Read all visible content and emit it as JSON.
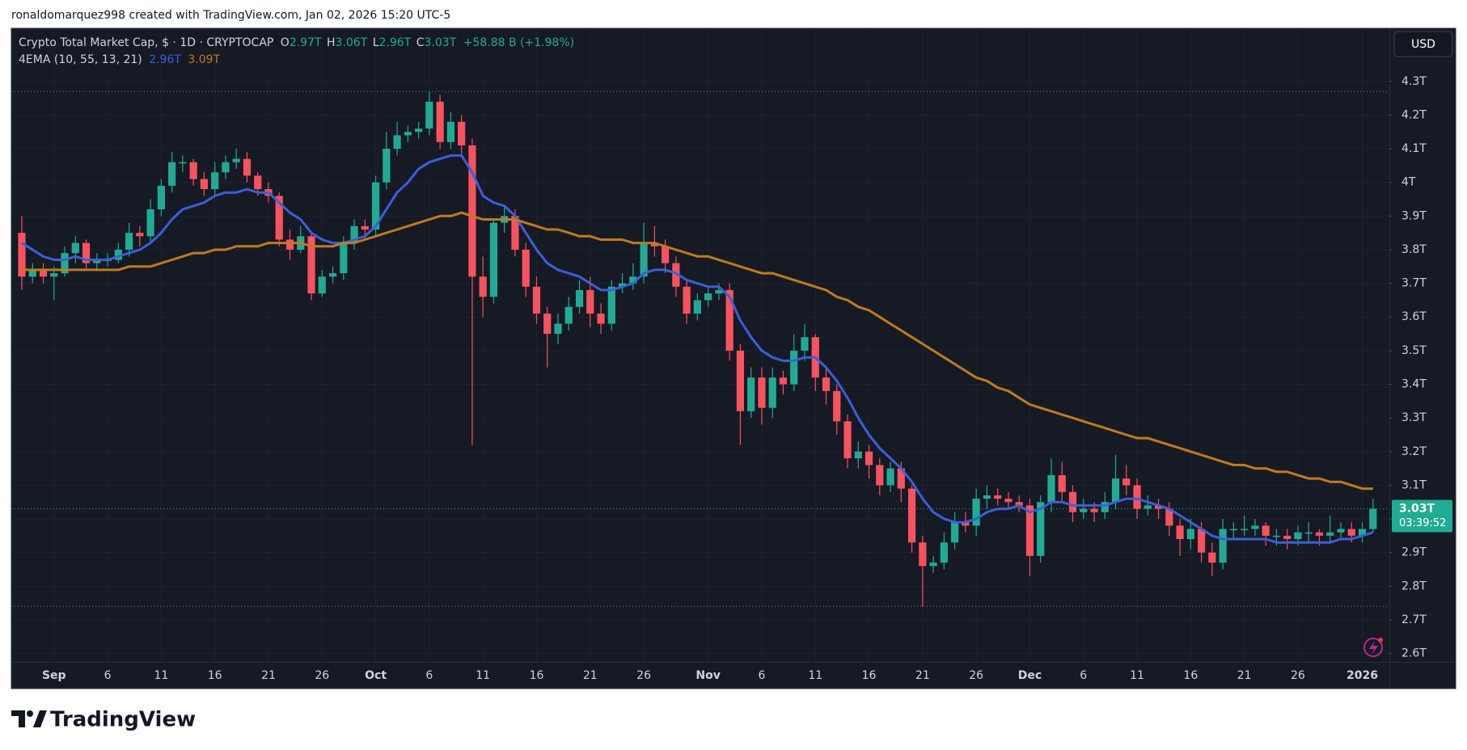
{
  "header": {
    "credit": "ronaldomarquez998 created with TradingView.com, Jan 02, 2026 15:20 UTC-5"
  },
  "footer": {
    "brand": "TradingView"
  },
  "chart_data": {
    "type": "candlestick",
    "symbol": "Crypto Total Market Cap, $ · 1D · CRYPTOCAP",
    "ohlc_legend": {
      "o_key": "O",
      "o": "2.97T",
      "h_key": "H",
      "h": "3.06T",
      "l_key": "L",
      "l": "2.96T",
      "c_key": "C",
      "c": "3.03T",
      "change": "+58.88 B (+1.98%)"
    },
    "indicator": "4EMA (10, 55, 13, 21)",
    "currency": "USD",
    "last_price_label": "3.03T",
    "countdown": "03:39:52",
    "up_color": "#22ab94",
    "down_color": "#f7525f",
    "grid": true,
    "ylim": [
      2.575,
      4.458
    ],
    "yticks": [
      {
        "value": 2.6,
        "label": "2.6T"
      },
      {
        "value": 2.7,
        "label": "2.7T"
      },
      {
        "value": 2.8,
        "label": "2.8T"
      },
      {
        "value": 2.9,
        "label": "2.9T"
      },
      {
        "value": 3.0,
        "label": "3T"
      },
      {
        "value": 3.1,
        "label": "3.1T"
      },
      {
        "value": 3.2,
        "label": "3.2T"
      },
      {
        "value": 3.3,
        "label": "3.3T"
      },
      {
        "value": 3.4,
        "label": "3.4T"
      },
      {
        "value": 3.5,
        "label": "3.5T"
      },
      {
        "value": 3.6,
        "label": "3.6T"
      },
      {
        "value": 3.7,
        "label": "3.7T"
      },
      {
        "value": 3.8,
        "label": "3.8T"
      },
      {
        "value": 3.9,
        "label": "3.9T"
      },
      {
        "value": 4.0,
        "label": "4T"
      },
      {
        "value": 4.1,
        "label": "4.1T"
      },
      {
        "value": 4.2,
        "label": "4.2T"
      },
      {
        "value": 4.3,
        "label": "4.3T"
      }
    ],
    "categories": [
      null,
      null,
      null,
      "Sep",
      null,
      null,
      null,
      null,
      "6",
      null,
      null,
      null,
      null,
      "11",
      null,
      null,
      null,
      null,
      "16",
      null,
      null,
      null,
      null,
      "21",
      null,
      null,
      null,
      null,
      "26",
      null,
      null,
      null,
      null,
      "Oct",
      null,
      null,
      null,
      null,
      "6",
      null,
      null,
      null,
      null,
      "11",
      null,
      null,
      null,
      null,
      "16",
      null,
      null,
      null,
      null,
      "21",
      null,
      null,
      null,
      null,
      "26",
      null,
      null,
      null,
      null,
      null,
      "Nov",
      null,
      null,
      null,
      null,
      "6",
      null,
      null,
      null,
      null,
      "11",
      null,
      null,
      null,
      null,
      "16",
      null,
      null,
      null,
      null,
      "21",
      null,
      null,
      null,
      null,
      "26",
      null,
      null,
      null,
      null,
      "Dec",
      null,
      null,
      null,
      null,
      "6",
      null,
      null,
      null,
      null,
      "11",
      null,
      null,
      null,
      null,
      "16",
      null,
      null,
      null,
      null,
      "21",
      null,
      null,
      null,
      null,
      "26",
      null,
      null,
      null,
      null,
      null,
      "2026",
      null
    ],
    "open": [
      3.85,
      3.72,
      3.74,
      3.72,
      3.73,
      3.79,
      3.82,
      3.76,
      3.77,
      3.77,
      3.8,
      3.85,
      3.84,
      3.92,
      3.99,
      4.06,
      4.06,
      4.01,
      3.98,
      4.03,
      4.06,
      4.07,
      4.02,
      3.98,
      3.96,
      3.83,
      3.8,
      3.84,
      3.67,
      3.72,
      3.73,
      3.82,
      3.87,
      3.86,
      4.0,
      4.1,
      4.14,
      4.15,
      4.16,
      4.24,
      4.12,
      4.18,
      4.11,
      3.72,
      3.66,
      3.88,
      3.9,
      3.8,
      3.69,
      3.61,
      3.55,
      3.58,
      3.63,
      3.68,
      3.61,
      3.58,
      3.69,
      3.7,
      3.72,
      3.82,
      3.81,
      3.76,
      3.69,
      3.61,
      3.65,
      3.67,
      3.68,
      3.5,
      3.32,
      3.42,
      3.33,
      3.42,
      3.4,
      3.5,
      3.54,
      3.42,
      3.38,
      3.29,
      3.18,
      3.2,
      3.16,
      3.1,
      3.15,
      3.09,
      2.93,
      2.86,
      2.87,
      2.93,
      2.99,
      2.98,
      3.06,
      3.07,
      3.06,
      3.05,
      3.04,
      2.89,
      3.05,
      3.13,
      3.08,
      3.02,
      3.03,
      3.02,
      3.05,
      3.12,
      3.1,
      3.03,
      3.04,
      3.03,
      2.98,
      2.94,
      2.97,
      2.9,
      2.87,
      2.97,
      2.97,
      2.97,
      2.98,
      2.95,
      2.95,
      2.94,
      2.96,
      2.96,
      2.95,
      2.96,
      2.97,
      2.95,
      2.97
    ],
    "high": [
      3.9,
      3.76,
      3.76,
      3.75,
      3.81,
      3.84,
      3.83,
      3.79,
      3.79,
      3.82,
      3.88,
      3.87,
      3.95,
      4.01,
      4.09,
      4.08,
      4.07,
      4.03,
      4.06,
      4.08,
      4.1,
      4.09,
      4.03,
      4.0,
      3.97,
      3.86,
      3.87,
      3.85,
      3.74,
      3.75,
      3.84,
      3.89,
      3.89,
      4.02,
      4.15,
      4.18,
      4.17,
      4.18,
      4.27,
      4.26,
      4.21,
      4.2,
      4.13,
      3.78,
      3.89,
      3.93,
      3.92,
      3.82,
      3.72,
      3.63,
      3.61,
      3.66,
      3.71,
      3.72,
      3.64,
      3.71,
      3.73,
      3.76,
      3.88,
      3.87,
      3.83,
      3.78,
      3.71,
      3.67,
      3.69,
      3.7,
      3.7,
      3.52,
      3.45,
      3.45,
      3.45,
      3.44,
      3.55,
      3.58,
      3.55,
      3.45,
      3.4,
      3.31,
      3.23,
      3.22,
      3.18,
      3.17,
      3.17,
      3.1,
      2.95,
      2.89,
      2.96,
      3.02,
      3.02,
      3.09,
      3.1,
      3.09,
      3.08,
      3.07,
      3.06,
      3.07,
      3.18,
      3.17,
      3.1,
      3.06,
      3.05,
      3.08,
      3.19,
      3.16,
      3.12,
      3.07,
      3.06,
      3.05,
      3.0,
      3.0,
      2.99,
      2.93,
      3.0,
      2.99,
      3.01,
      3.0,
      2.99,
      2.97,
      2.97,
      2.98,
      2.99,
      2.97,
      3.01,
      2.99,
      2.99,
      2.99,
      3.06
    ],
    "low": [
      3.68,
      3.7,
      3.7,
      3.65,
      3.72,
      3.76,
      3.74,
      3.74,
      3.75,
      3.76,
      3.78,
      3.81,
      3.82,
      3.9,
      3.97,
      4.03,
      3.99,
      3.96,
      3.96,
      4.01,
      4.04,
      4.0,
      3.96,
      3.94,
      3.81,
      3.77,
      3.79,
      3.65,
      3.66,
      3.7,
      3.71,
      3.8,
      3.83,
      3.84,
      3.98,
      4.08,
      4.12,
      4.13,
      4.14,
      4.1,
      4.1,
      4.08,
      3.22,
      3.6,
      3.64,
      3.85,
      3.78,
      3.66,
      3.58,
      3.45,
      3.52,
      3.56,
      3.61,
      3.57,
      3.55,
      3.56,
      3.67,
      3.68,
      3.7,
      3.78,
      3.73,
      3.66,
      3.58,
      3.59,
      3.63,
      3.65,
      3.47,
      3.22,
      3.3,
      3.28,
      3.3,
      3.37,
      3.38,
      3.47,
      3.38,
      3.34,
      3.25,
      3.15,
      3.15,
      3.12,
      3.07,
      3.08,
      3.05,
      2.9,
      2.74,
      2.84,
      2.85,
      2.91,
      2.96,
      2.95,
      3.03,
      3.04,
      3.03,
      3.02,
      2.83,
      2.87,
      3.02,
      3.05,
      2.99,
      3.0,
      2.99,
      3.0,
      3.03,
      3.07,
      3.0,
      3.01,
      3.0,
      2.95,
      2.89,
      2.91,
      2.87,
      2.83,
      2.85,
      2.94,
      2.95,
      2.95,
      2.92,
      2.92,
      2.91,
      2.92,
      2.93,
      2.92,
      2.93,
      2.94,
      2.93,
      2.93,
      2.96
    ],
    "close": [
      3.72,
      3.74,
      3.72,
      3.73,
      3.79,
      3.82,
      3.76,
      3.77,
      3.77,
      3.8,
      3.85,
      3.84,
      3.92,
      3.99,
      4.06,
      4.06,
      4.01,
      3.98,
      4.03,
      4.06,
      4.07,
      4.02,
      3.98,
      3.96,
      3.83,
      3.8,
      3.84,
      3.67,
      3.72,
      3.73,
      3.82,
      3.87,
      3.86,
      4.0,
      4.1,
      4.14,
      4.15,
      4.16,
      4.24,
      4.12,
      4.18,
      4.11,
      3.72,
      3.66,
      3.88,
      3.9,
      3.8,
      3.69,
      3.61,
      3.55,
      3.58,
      3.63,
      3.68,
      3.61,
      3.58,
      3.69,
      3.7,
      3.72,
      3.82,
      3.81,
      3.76,
      3.69,
      3.61,
      3.65,
      3.67,
      3.68,
      3.5,
      3.32,
      3.42,
      3.33,
      3.42,
      3.4,
      3.5,
      3.54,
      3.42,
      3.38,
      3.29,
      3.18,
      3.2,
      3.16,
      3.1,
      3.15,
      3.09,
      2.93,
      2.86,
      2.87,
      2.93,
      2.99,
      2.98,
      3.06,
      3.07,
      3.06,
      3.05,
      3.04,
      2.89,
      3.05,
      3.13,
      3.08,
      3.02,
      3.03,
      3.02,
      3.05,
      3.12,
      3.1,
      3.03,
      3.04,
      3.03,
      2.98,
      2.94,
      2.97,
      2.9,
      2.87,
      2.97,
      2.97,
      2.97,
      2.98,
      2.95,
      2.95,
      2.94,
      2.96,
      2.96,
      2.95,
      2.96,
      2.97,
      2.95,
      2.97,
      3.03
    ],
    "lines": [
      {
        "color": "#3b5fd9",
        "value_label": "2.96T",
        "values": [
          3.82,
          3.8,
          3.78,
          3.77,
          3.77,
          3.78,
          3.77,
          3.77,
          3.77,
          3.78,
          3.79,
          3.8,
          3.82,
          3.85,
          3.89,
          3.92,
          3.93,
          3.94,
          3.96,
          3.97,
          3.97,
          3.98,
          3.97,
          3.97,
          3.94,
          3.91,
          3.89,
          3.85,
          3.83,
          3.82,
          3.82,
          3.83,
          3.84,
          3.87,
          3.92,
          3.97,
          4.0,
          4.04,
          4.06,
          4.07,
          4.08,
          4.08,
          4.03,
          3.96,
          3.94,
          3.93,
          3.9,
          3.85,
          3.8,
          3.76,
          3.74,
          3.73,
          3.72,
          3.7,
          3.68,
          3.68,
          3.69,
          3.7,
          3.73,
          3.74,
          3.74,
          3.73,
          3.71,
          3.7,
          3.69,
          3.69,
          3.66,
          3.59,
          3.54,
          3.5,
          3.48,
          3.47,
          3.47,
          3.48,
          3.48,
          3.45,
          3.41,
          3.36,
          3.3,
          3.25,
          3.21,
          3.18,
          3.15,
          3.11,
          3.06,
          3.02,
          3.0,
          2.99,
          2.99,
          3.0,
          3.02,
          3.03,
          3.03,
          3.04,
          3.02,
          3.03,
          3.05,
          3.05,
          3.04,
          3.04,
          3.04,
          3.04,
          3.05,
          3.06,
          3.06,
          3.05,
          3.04,
          3.03,
          3.01,
          2.99,
          2.97,
          2.95,
          2.94,
          2.94,
          2.94,
          2.94,
          2.94,
          2.93,
          2.93,
          2.93,
          2.93,
          2.93,
          2.93,
          2.94,
          2.94,
          2.95,
          2.96
        ]
      },
      {
        "color": "#c07a1e",
        "value_label": "3.09T",
        "values": [
          3.74,
          3.74,
          3.74,
          3.74,
          3.74,
          3.74,
          3.74,
          3.74,
          3.74,
          3.74,
          3.75,
          3.75,
          3.75,
          3.76,
          3.77,
          3.78,
          3.79,
          3.79,
          3.8,
          3.8,
          3.81,
          3.81,
          3.81,
          3.82,
          3.82,
          3.82,
          3.82,
          3.81,
          3.81,
          3.81,
          3.82,
          3.82,
          3.83,
          3.84,
          3.85,
          3.86,
          3.87,
          3.88,
          3.89,
          3.9,
          3.9,
          3.91,
          3.9,
          3.89,
          3.89,
          3.89,
          3.89,
          3.88,
          3.87,
          3.86,
          3.86,
          3.85,
          3.84,
          3.84,
          3.83,
          3.83,
          3.83,
          3.82,
          3.82,
          3.82,
          3.81,
          3.8,
          3.79,
          3.78,
          3.78,
          3.77,
          3.76,
          3.75,
          3.74,
          3.73,
          3.73,
          3.72,
          3.71,
          3.7,
          3.69,
          3.68,
          3.66,
          3.65,
          3.63,
          3.62,
          3.6,
          3.58,
          3.56,
          3.54,
          3.52,
          3.5,
          3.48,
          3.46,
          3.44,
          3.42,
          3.41,
          3.39,
          3.38,
          3.36,
          3.34,
          3.33,
          3.32,
          3.31,
          3.3,
          3.29,
          3.28,
          3.27,
          3.26,
          3.25,
          3.24,
          3.24,
          3.23,
          3.22,
          3.21,
          3.2,
          3.19,
          3.18,
          3.17,
          3.16,
          3.16,
          3.15,
          3.15,
          3.14,
          3.14,
          3.13,
          3.12,
          3.12,
          3.11,
          3.11,
          3.1,
          3.09,
          3.09
        ]
      }
    ]
  }
}
